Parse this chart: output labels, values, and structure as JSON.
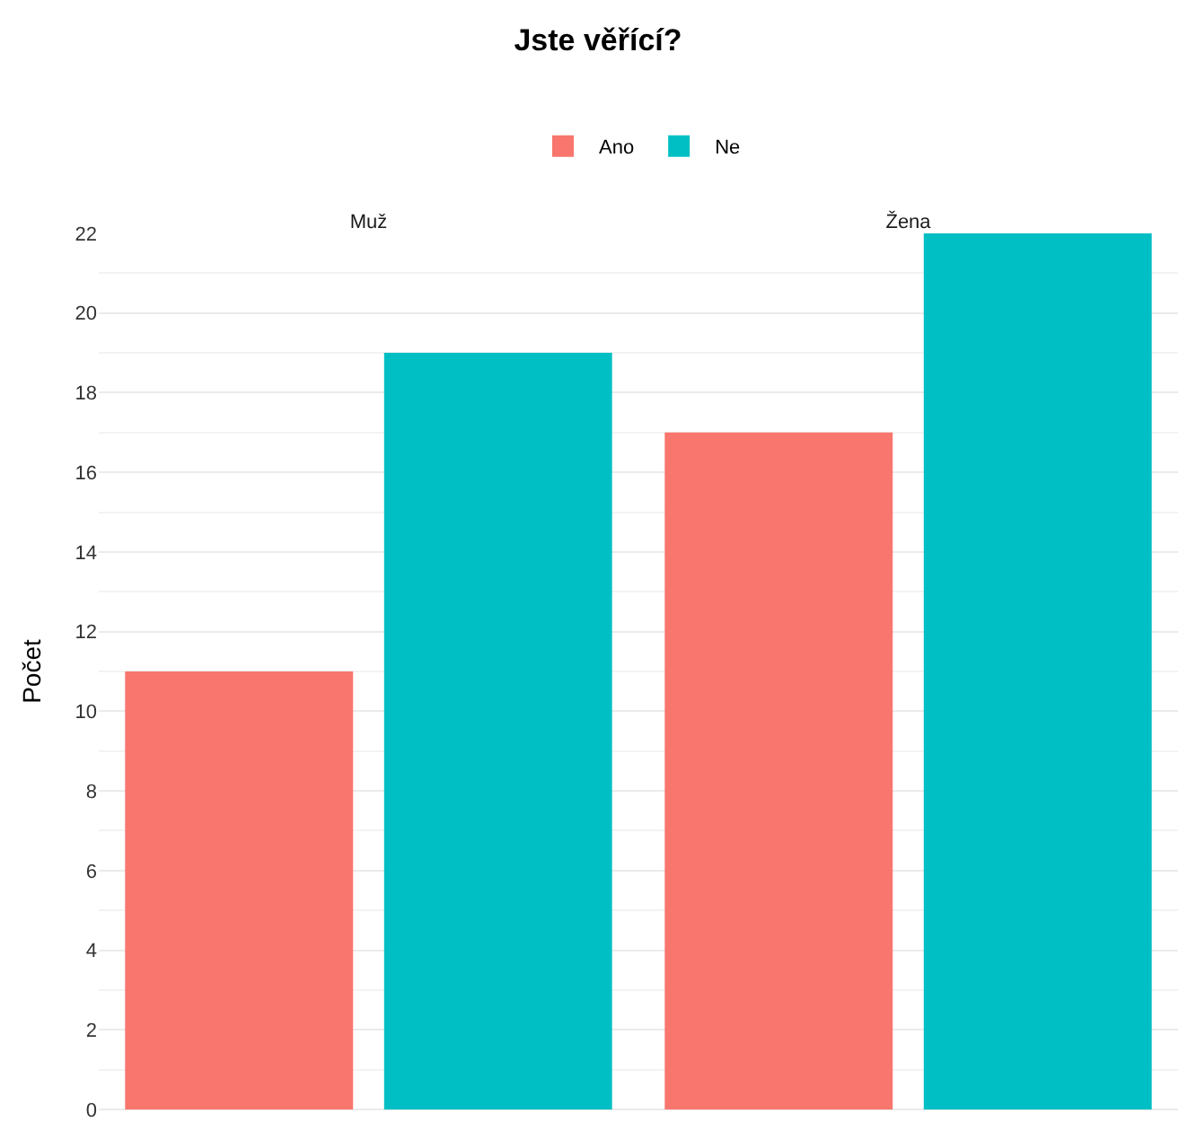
{
  "chart_data": {
    "type": "bar",
    "title": "Jste věřící?",
    "ylabel": "Počet",
    "categories": [
      "Muž",
      "Žena"
    ],
    "series": [
      {
        "name": "Ano",
        "color": "#f8766d",
        "values": [
          11,
          17
        ]
      },
      {
        "name": "Ne",
        "color": "#00bfc4",
        "values": [
          19,
          22
        ]
      }
    ],
    "ylim": [
      0,
      22
    ],
    "yticks": [
      0,
      2,
      4,
      6,
      8,
      10,
      12,
      14,
      16,
      18,
      20,
      22
    ],
    "grid": "y",
    "legend": "top"
  }
}
